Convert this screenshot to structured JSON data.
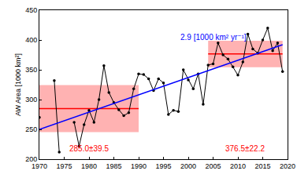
{
  "chart_data": {
    "type": "line",
    "y_label": "AW Area [1000 km²]",
    "x": [
      1970,
      1971,
      1972,
      1973,
      1974,
      1975,
      1976,
      1977,
      1978,
      1979,
      1980,
      1981,
      1982,
      1983,
      1984,
      1985,
      1986,
      1987,
      1988,
      1989,
      1990,
      1991,
      1992,
      1993,
      1994,
      1995,
      1996,
      1997,
      1998,
      1999,
      2000,
      2001,
      2002,
      2003,
      2004,
      2005,
      2006,
      2007,
      2008,
      2009,
      2010,
      2011,
      2012,
      2013,
      2014,
      2015,
      2016,
      2017,
      2018,
      2019
    ],
    "series": [
      {
        "color": "#000000",
        "marker": "circle",
        "values": [
          270,
          null,
          null,
          332,
          212,
          null,
          null,
          262,
          222,
          258,
          282,
          262,
          300,
          357,
          312,
          295,
          283,
          273,
          278,
          318,
          343,
          342,
          335,
          315,
          335,
          328,
          275,
          282,
          280,
          350,
          333,
          318,
          343,
          292,
          358,
          360,
          395,
          375,
          368,
          355,
          341,
          363,
          410,
          385,
          378,
          400,
          420,
          382,
          395,
          347
        ]
      },
      {
        "type": "trend",
        "color": "#0000ff",
        "x": [
          1970,
          2019
        ],
        "values": [
          250,
          392
        ],
        "label": "2.9 [1000 km² yr⁻¹]"
      }
    ],
    "bands": [
      {
        "x": [
          1970,
          1990
        ],
        "mean": 285.0,
        "std": 39.5,
        "label": "285.0±39.5",
        "color": "#ff0000"
      },
      {
        "x": [
          2004,
          2019
        ],
        "mean": 376.5,
        "std": 22.2,
        "label": "376.5±22.2",
        "color": "#ff0000"
      }
    ],
    "xlim": [
      1970,
      2020
    ],
    "xticks": [
      1970,
      1975,
      1980,
      1985,
      1990,
      1995,
      2000,
      2005,
      2010,
      2015,
      2020
    ],
    "ylim": [
      200,
      450
    ],
    "yticks": [
      200,
      250,
      300,
      350,
      400,
      450
    ],
    "grid": false
  }
}
